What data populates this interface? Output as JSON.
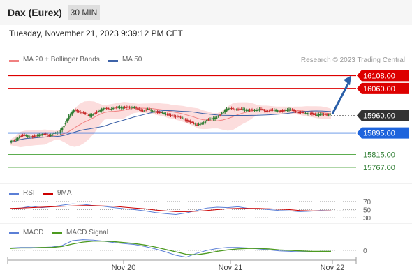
{
  "header": {
    "instrument": "Dax (Eurex)",
    "timeframe": "30 MIN",
    "datetime": "Tuesday, November 21, 2023 9:39:12 PM CET"
  },
  "legend": {
    "ma20": "MA 20 + Bollinger Bands",
    "ma50": "MA 50",
    "copyright": "Research © 2023 Trading Central",
    "rsi": "RSI",
    "rsi_ma": "9MA",
    "macd": "MACD",
    "macd_signal": "MACD Signal"
  },
  "colors": {
    "resistance": "#dd0000",
    "pivot": "#1e64dc",
    "support": "#5cad4f",
    "current": "#333333",
    "ma20": "#f08080",
    "ma50": "#3e63a8",
    "band": "#fbd7d7",
    "candle_up": "#2e7d32",
    "candle_down": "#c62828",
    "arrow": "#2a5fa8",
    "rsi": "#5b7fd6",
    "rsi_ma": "#cc0000",
    "macd": "#5b7fd6",
    "macd_signal": "#4c9a1f"
  },
  "chart_data": {
    "type": "candlestick",
    "y_range": [
      15710,
      16140
    ],
    "x_ticks": [
      "Nov 20",
      "Nov 21",
      "Nov 22"
    ],
    "levels": [
      {
        "label": "16108.00",
        "value": 16108,
        "kind": "resistance"
      },
      {
        "label": "16060.00",
        "value": 16060,
        "kind": "resistance"
      },
      {
        "label": "15960.00",
        "value": 15960,
        "kind": "current"
      },
      {
        "label": "15895.00",
        "value": 15895,
        "kind": "pivot"
      },
      {
        "label": "15815.00",
        "value": 15815,
        "kind": "support"
      },
      {
        "label": "15767.00",
        "value": 15767,
        "kind": "support"
      }
    ],
    "price_series": [
      15860,
      15868,
      15884,
      15884,
      15882,
      15883,
      15887,
      15890,
      15888,
      15892,
      15896,
      15924,
      15958,
      15978,
      15976,
      15968,
      15958,
      15966,
      15977,
      15984,
      15986,
      15988,
      15988,
      15990,
      15991,
      15990,
      15982,
      15980,
      15982,
      15976,
      15972,
      15970,
      15960,
      15962,
      15954,
      15950,
      15940,
      15934,
      15922,
      15932,
      15944,
      15946,
      15954,
      15970,
      15982,
      15986,
      15984,
      15981,
      15980,
      15981,
      15979,
      15982,
      15978,
      15978,
      15978,
      15976,
      15980,
      15980,
      15976,
      15970,
      15966,
      15968,
      15962,
      15962,
      15964,
      15966
    ],
    "rsi": {
      "levels": [
        70,
        50,
        30
      ],
      "range": [
        20,
        80
      ],
      "rsi_series": [
        52,
        54,
        58,
        55,
        57,
        61,
        64,
        63,
        60,
        58,
        55,
        52,
        50,
        47,
        43,
        40,
        38,
        42,
        48,
        54,
        56,
        55,
        57,
        53,
        52,
        50,
        48,
        47,
        45,
        46,
        48,
        47
      ],
      "ma_series": [
        53,
        54,
        55,
        56,
        57,
        58,
        59,
        60,
        60,
        59,
        58,
        56,
        54,
        52,
        49,
        47,
        45,
        45,
        46,
        48,
        50,
        52,
        53,
        53,
        53,
        52,
        51,
        50,
        48,
        47,
        47,
        47
      ]
    },
    "macd": {
      "zero_label": "0",
      "range": [
        -20,
        30
      ],
      "macd_series": [
        5,
        6,
        6,
        6,
        7,
        10,
        20,
        22,
        21,
        19,
        16,
        14,
        12,
        8,
        3,
        -3,
        -10,
        -14,
        -6,
        0,
        4,
        6,
        6,
        5,
        3,
        1,
        -1,
        -2,
        -3,
        -3,
        -2,
        -2
      ],
      "signal_series": [
        4,
        5,
        5,
        6,
        6,
        8,
        13,
        17,
        19,
        19,
        18,
        16,
        14,
        11,
        7,
        2,
        -3,
        -8,
        -9,
        -6,
        -2,
        1,
        3,
        4,
        4,
        3,
        1,
        0,
        -1,
        -2,
        -2,
        -2
      ]
    }
  }
}
